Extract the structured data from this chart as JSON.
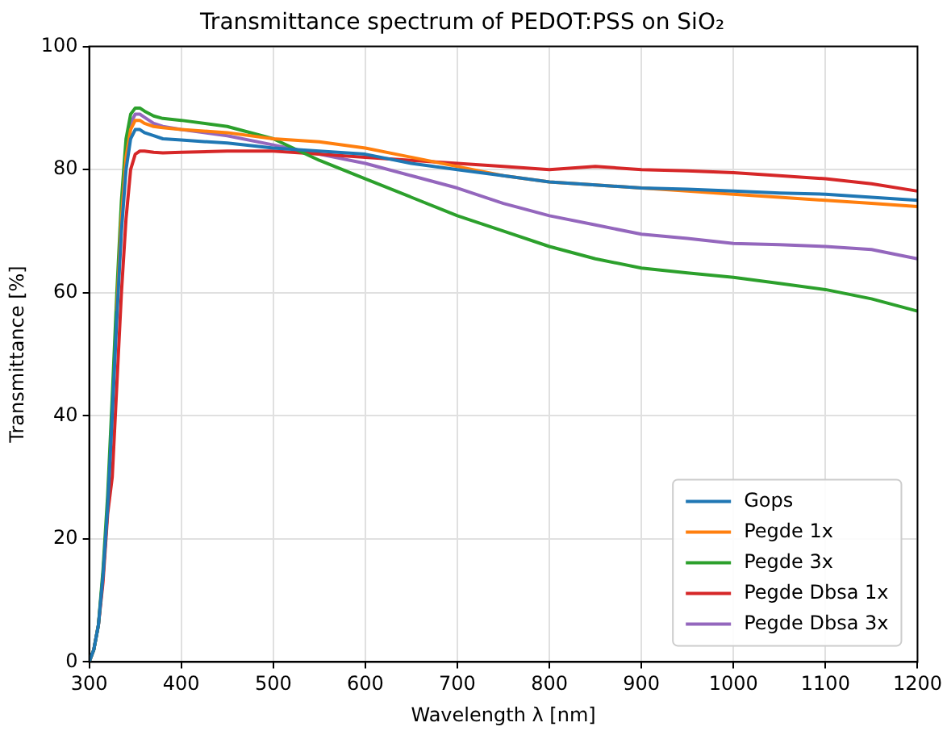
{
  "chart_data": {
    "type": "line",
    "title": "Transmittance spectrum of PEDOT:PSS on SiO₂",
    "xlabel": "Wavelength λ [nm]",
    "ylabel": "Transmittance [%]",
    "x": [
      300,
      305,
      310,
      315,
      320,
      325,
      330,
      335,
      340,
      345,
      350,
      355,
      360,
      370,
      380,
      400,
      450,
      500,
      550,
      600,
      650,
      700,
      750,
      800,
      850,
      900,
      950,
      1000,
      1050,
      1100,
      1150,
      1200
    ],
    "series": [
      {
        "name": "Gops",
        "color": "#1f77b4",
        "values": [
          0,
          2,
          6,
          14,
          25,
          40,
          56,
          70,
          80,
          85,
          86.5,
          86.5,
          86,
          85.5,
          85,
          84.8,
          84.3,
          83.5,
          83,
          82.5,
          81,
          80,
          79,
          78,
          77.5,
          77,
          76.8,
          76.5,
          76.2,
          76,
          75.5,
          75
        ]
      },
      {
        "name": "Pegde 1x",
        "color": "#ff7f0e",
        "values": [
          null,
          null,
          null,
          null,
          null,
          null,
          57,
          72,
          82,
          86.5,
          88,
          88,
          87.5,
          87,
          86.8,
          86.5,
          86,
          85,
          84.5,
          83.5,
          82,
          80.5,
          79,
          78,
          77.5,
          77,
          76.5,
          76,
          75.5,
          75,
          74.5,
          74
        ]
      },
      {
        "name": "Pegde 3x",
        "color": "#2ca02c",
        "values": [
          0,
          2,
          6,
          15,
          27,
          43,
          60,
          75,
          85,
          89,
          90,
          90,
          89.5,
          88.7,
          88.3,
          88,
          87,
          85,
          81.5,
          78.5,
          75.5,
          72.5,
          70,
          67.5,
          65.5,
          64,
          63.2,
          62.5,
          61.5,
          60.5,
          59,
          57
        ]
      },
      {
        "name": "Pegde Dbsa 1x",
        "color": "#d62728",
        "values": [
          0,
          2,
          6,
          13,
          24,
          30,
          45,
          60,
          72,
          80,
          82.5,
          83,
          83,
          82.8,
          82.7,
          82.8,
          83,
          83,
          82.5,
          82,
          81.5,
          81,
          80.5,
          80,
          80.5,
          80,
          79.8,
          79.5,
          79,
          78.5,
          77.7,
          76.5
        ]
      },
      {
        "name": "Pegde Dbsa 3x",
        "color": "#9467bd",
        "values": [
          0,
          2,
          6,
          14,
          25,
          41,
          58,
          73,
          83,
          87.5,
          89,
          89,
          88.5,
          87.5,
          87,
          86.5,
          85.5,
          84,
          82.5,
          81,
          79,
          77,
          74.5,
          72.5,
          71,
          69.5,
          68.8,
          68,
          67.8,
          67.5,
          67,
          65.5
        ]
      }
    ],
    "xlim": [
      300,
      1200
    ],
    "xticks": [
      300,
      400,
      500,
      600,
      700,
      800,
      900,
      1000,
      1100,
      1200
    ],
    "ylim": [
      0,
      100
    ],
    "yticks": [
      0,
      20,
      40,
      60,
      80,
      100
    ],
    "grid": true,
    "legend": "bottom right",
    "marker": "none",
    "line_style": "solid"
  }
}
